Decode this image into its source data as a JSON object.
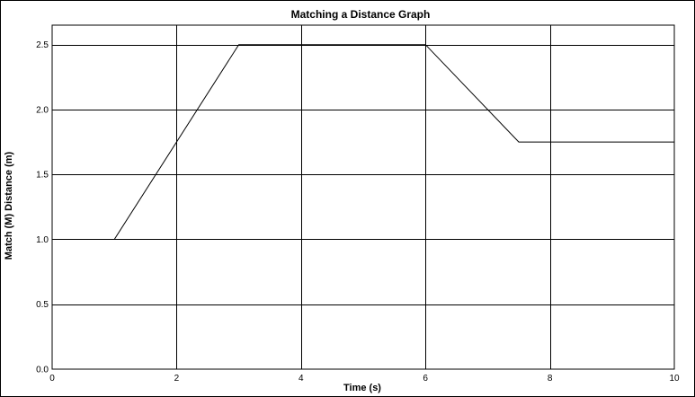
{
  "chart_data": {
    "type": "line",
    "title": "Matching a Distance Graph",
    "xlabel": "Time (s)",
    "ylabel": "Match (M) Distance (m)",
    "xlim": [
      0,
      10
    ],
    "ylim": [
      0,
      2.65
    ],
    "x_ticks": [
      0,
      2,
      4,
      6,
      8,
      10
    ],
    "y_ticks": [
      0.0,
      0.5,
      1.0,
      1.5,
      2.0,
      2.5
    ],
    "x_tick_labels": [
      "0",
      "2",
      "4",
      "6",
      "8",
      "10"
    ],
    "y_tick_labels": [
      "0.0",
      "0.5",
      "1.0",
      "1.5",
      "2.0",
      "2.5"
    ],
    "grid": true,
    "legend": "none",
    "series": [
      {
        "color": "#000000",
        "points": [
          {
            "x": 0,
            "y": 1.0
          },
          {
            "x": 1,
            "y": 1.0
          },
          {
            "x": 3,
            "y": 2.5
          },
          {
            "x": 6,
            "y": 2.5
          },
          {
            "x": 7.5,
            "y": 1.75
          },
          {
            "x": 10,
            "y": 1.75
          }
        ]
      }
    ]
  }
}
